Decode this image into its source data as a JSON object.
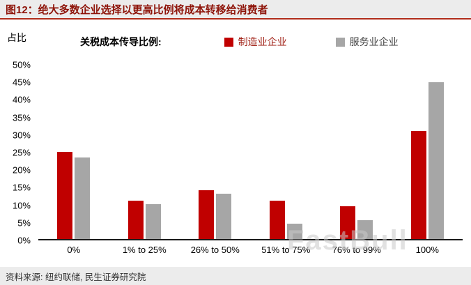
{
  "header": {
    "title": "图12：绝大多数企业选择以更高比例将成本转移给消费者"
  },
  "footer": {
    "source": "资料来源: 纽约联储, 民生证券研究院"
  },
  "watermark": {
    "text": "FastBull"
  },
  "chart_data": {
    "type": "bar",
    "title": "",
    "ylabel": "占比",
    "xlabel": "",
    "legend_title": "关税成本传导比例:",
    "legend_position": "top",
    "grid": false,
    "categories": [
      "0%",
      "1% to 25%",
      "26% to 50%",
      "51% to 75%",
      "76% to 99%",
      "100%"
    ],
    "series": [
      {
        "key": "manufacturing",
        "name": "制造业企业",
        "color": "#c00000",
        "label_color": "#9e1b10",
        "values": [
          25,
          11,
          14,
          11,
          9.5,
          31
        ]
      },
      {
        "key": "services",
        "name": "服务业企业",
        "color": "#a6a6a6",
        "label_color": "#404040",
        "values": [
          23.5,
          10,
          13,
          4.5,
          5.5,
          45
        ]
      }
    ],
    "ylim": [
      0,
      50
    ],
    "ytick_step": 5,
    "ytick_suffix": "%"
  }
}
